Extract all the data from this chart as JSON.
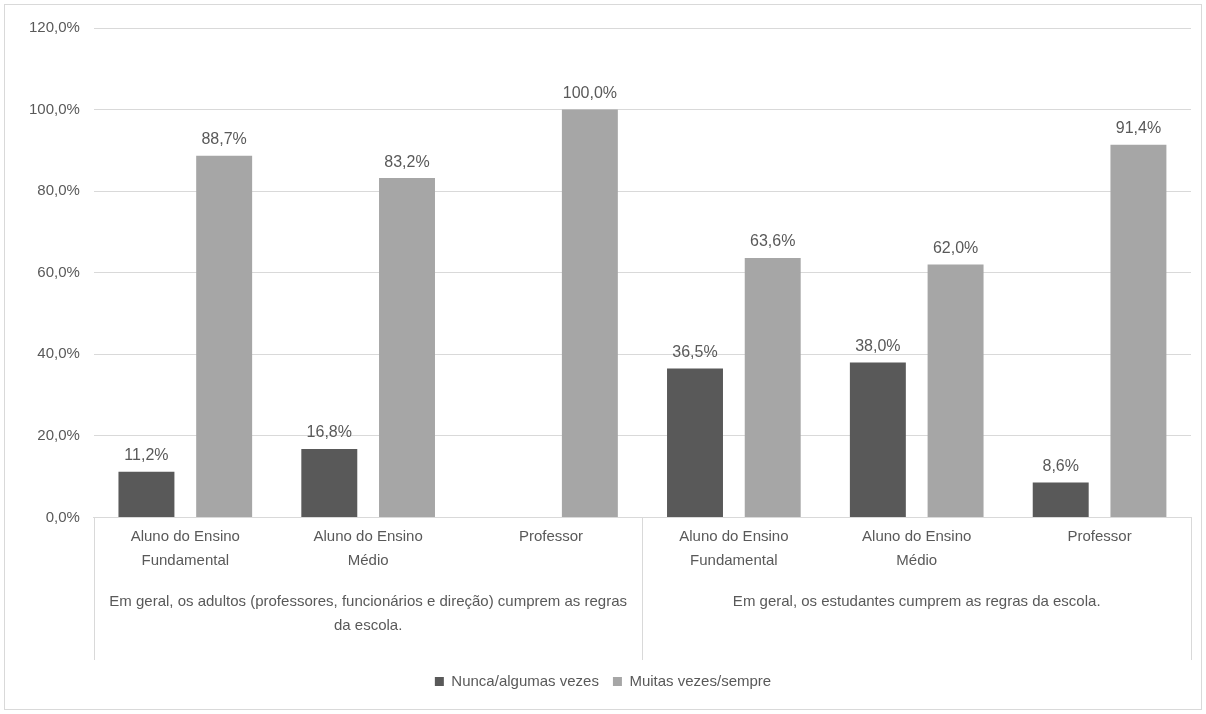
{
  "chart_data": {
    "type": "bar",
    "categories": [
      "Aluno do Ensino Fundamental",
      "Aluno do Ensino Médio",
      "Professor",
      "Aluno do Ensino Fundamental",
      "Aluno do Ensino Médio",
      "Professor"
    ],
    "series": [
      {
        "name": "Nunca/algumas vezes",
        "color": "#595959",
        "values": [
          11.2,
          16.8,
          null,
          36.5,
          38.0,
          8.6
        ],
        "value_labels": [
          "11,2%",
          "16,8%",
          null,
          "36,5%",
          "38,0%",
          "8,6%"
        ]
      },
      {
        "name": "Muitas vezes/sempre",
        "color": "#a6a6a6",
        "values": [
          88.7,
          83.2,
          100.0,
          63.6,
          62.0,
          91.4
        ],
        "value_labels": [
          "88,7%",
          "83,2%",
          "100,0%",
          "63,6%",
          "62,0%",
          "91,4%"
        ]
      }
    ],
    "ylim": [
      0,
      120
    ],
    "yticks": [
      {
        "value": 0,
        "label": "0,0%"
      },
      {
        "value": 20,
        "label": "20,0%"
      },
      {
        "value": 40,
        "label": "40,0%"
      },
      {
        "value": 60,
        "label": "60,0%"
      },
      {
        "value": 80,
        "label": "80,0%"
      },
      {
        "value": 100,
        "label": "100,0%"
      },
      {
        "value": 120,
        "label": "120,0%"
      }
    ],
    "grid": "y",
    "legend": "bottom",
    "annotations": [
      "Em geral, os adultos (professores, funcionários e direção) cumprem as regras da escola.",
      "Em geral, os estudantes cumprem as regras da escola."
    ]
  }
}
